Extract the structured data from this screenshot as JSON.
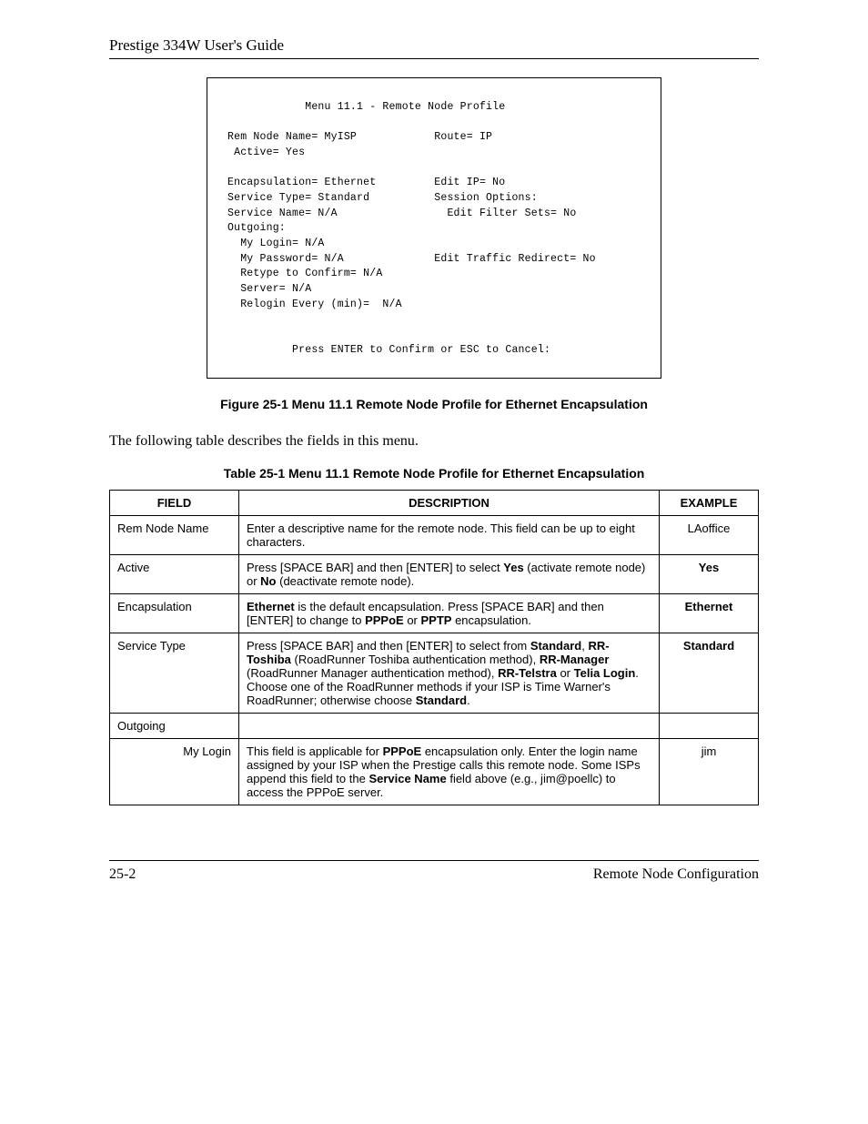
{
  "header": {
    "title": "Prestige 334W User's Guide"
  },
  "terminal": {
    "title": "Menu 11.1 - Remote Node Profile",
    "left": {
      "rem_node_name": "Rem Node Name= MyISP",
      "active": " Active= Yes",
      "encapsulation": "Encapsulation= Ethernet",
      "service_type": "Service Type= Standard",
      "service_name": "Service Name= N/A",
      "outgoing": "Outgoing:",
      "my_login": "  My Login= N/A",
      "my_password": "  My Password= N/A",
      "retype": "  Retype to Confirm= N/A",
      "server": "  Server= N/A",
      "relogin": "  Relogin Every (min)=  N/A"
    },
    "right": {
      "route": "Route= IP",
      "edit_ip": "Edit IP= No",
      "session_opts": "Session Options:",
      "edit_filter": "  Edit Filter Sets= No",
      "edit_traffic": "Edit Traffic Redirect= No"
    },
    "footer": "Press ENTER to Confirm or ESC to Cancel:"
  },
  "figure_caption": "Figure 25-1 Menu 11.1 Remote Node Profile for Ethernet Encapsulation",
  "intro_text": "The following table describes the fields in this menu.",
  "table_caption": "Table 25-1 Menu 11.1 Remote Node Profile for Ethernet Encapsulation",
  "table": {
    "headers": {
      "field": "FIELD",
      "description": "DESCRIPTION",
      "example": "EXAMPLE"
    },
    "rows": [
      {
        "field": "Rem Node Name",
        "field_class": "",
        "desc_html": "Enter a descriptive name for the remote node. This field can be up to eight characters.",
        "example": "LAoffice"
      },
      {
        "field": "Active",
        "field_class": "",
        "desc_html": "Press [SPACE BAR] and then [ENTER] to select <span class=\"bold\">Yes</span> (activate remote node) or <span class=\"bold\">No</span> (deactivate remote node).",
        "example": "Yes",
        "example_bold": true
      },
      {
        "field": "Encapsulation",
        "field_class": "",
        "desc_html": "<span class=\"bold\">Ethernet</span> is the default encapsulation. Press [SPACE BAR] and then [ENTER] to change to <span class=\"bold\">PPPoE</span> or <span class=\"bold\">PPTP</span> encapsulation.",
        "example": "Ethernet",
        "example_bold": true
      },
      {
        "field": "Service Type",
        "field_class": "",
        "desc_html": "Press [SPACE BAR] and then [ENTER] to select from <span class=\"bold\">Standard</span>, <span class=\"bold\">RR-Toshiba</span> (RoadRunner Toshiba authentication method), <span class=\"bold\">RR-Manager</span> (RoadRunner Manager authentication method), <span class=\"bold\">RR-Telstra</span> or <span class=\"bold\">Telia Login</span>. Choose one of the RoadRunner methods if your ISP is Time Warner's RoadRunner; otherwise choose <span class=\"bold\">Standard</span>.",
        "example": "Standard",
        "example_bold": true
      },
      {
        "field": "Outgoing",
        "field_class": "",
        "desc_html": "",
        "example": ""
      },
      {
        "field": "My Login",
        "field_class": "field-sub",
        "desc_html": "This field is applicable for <span class=\"bold\">PPPoE</span> encapsulation only. Enter the login name assigned by your ISP when the Prestige calls this remote node. Some ISPs append this field to the <span class=\"bold\">Service Name</span> field above (e.g., jim@poellc) to access the PPPoE server.",
        "example": "jim"
      }
    ]
  },
  "footer": {
    "page": "25-2",
    "section": "Remote Node Configuration"
  }
}
